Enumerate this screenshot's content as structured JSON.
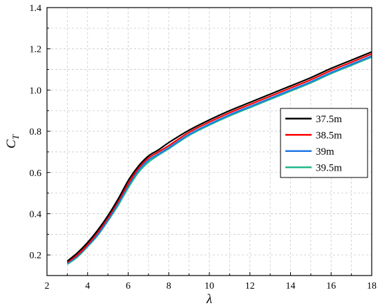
{
  "chart_data": {
    "type": "line",
    "title": "",
    "xlabel": "λ",
    "ylabel": "C",
    "ylabel_subscript": "T",
    "xlim": [
      2,
      18
    ],
    "ylim": [
      0.1,
      1.4
    ],
    "x_ticks": [
      2,
      4,
      6,
      8,
      10,
      12,
      14,
      16,
      18
    ],
    "y_ticks": [
      0.2,
      0.4,
      0.6,
      0.8,
      1.0,
      1.2,
      1.4
    ],
    "x_tick_labels": [
      "2",
      "4",
      "6",
      "8",
      "10",
      "12",
      "14",
      "16",
      "18"
    ],
    "y_tick_labels": [
      "0.2",
      "0.4",
      "0.6",
      "0.8",
      "1.0",
      "1.2",
      "1.4"
    ],
    "grid": true,
    "legend_position": "right",
    "x": [
      3,
      3.5,
      4,
      4.5,
      5,
      5.5,
      6,
      6.5,
      7,
      7.5,
      8,
      9,
      10,
      11,
      12,
      13,
      14,
      15,
      16,
      17,
      18
    ],
    "series": [
      {
        "name": "37.5m",
        "color": "#000000",
        "values": [
          0.17,
          0.21,
          0.26,
          0.32,
          0.39,
          0.47,
          0.56,
          0.63,
          0.68,
          0.71,
          0.745,
          0.805,
          0.855,
          0.9,
          0.94,
          0.98,
          1.02,
          1.06,
          1.105,
          1.145,
          1.185
        ]
      },
      {
        "name": "38.5m",
        "color": "#ff0000",
        "values": [
          0.165,
          0.2,
          0.25,
          0.31,
          0.38,
          0.46,
          0.545,
          0.62,
          0.67,
          0.7,
          0.73,
          0.795,
          0.845,
          0.89,
          0.93,
          0.97,
          1.01,
          1.05,
          1.095,
          1.135,
          1.175
        ]
      },
      {
        "name": "39m",
        "color": "#1f77e6",
        "values": [
          0.16,
          0.195,
          0.245,
          0.3,
          0.37,
          0.45,
          0.535,
          0.61,
          0.66,
          0.69,
          0.72,
          0.785,
          0.835,
          0.88,
          0.92,
          0.96,
          1.0,
          1.04,
          1.085,
          1.125,
          1.165
        ]
      },
      {
        "name": "39.5m",
        "color": "#1fb88a",
        "values": [
          0.155,
          0.19,
          0.24,
          0.295,
          0.365,
          0.44,
          0.525,
          0.6,
          0.65,
          0.685,
          0.715,
          0.78,
          0.83,
          0.875,
          0.915,
          0.955,
          0.995,
          1.035,
          1.08,
          1.12,
          1.16
        ]
      }
    ]
  }
}
